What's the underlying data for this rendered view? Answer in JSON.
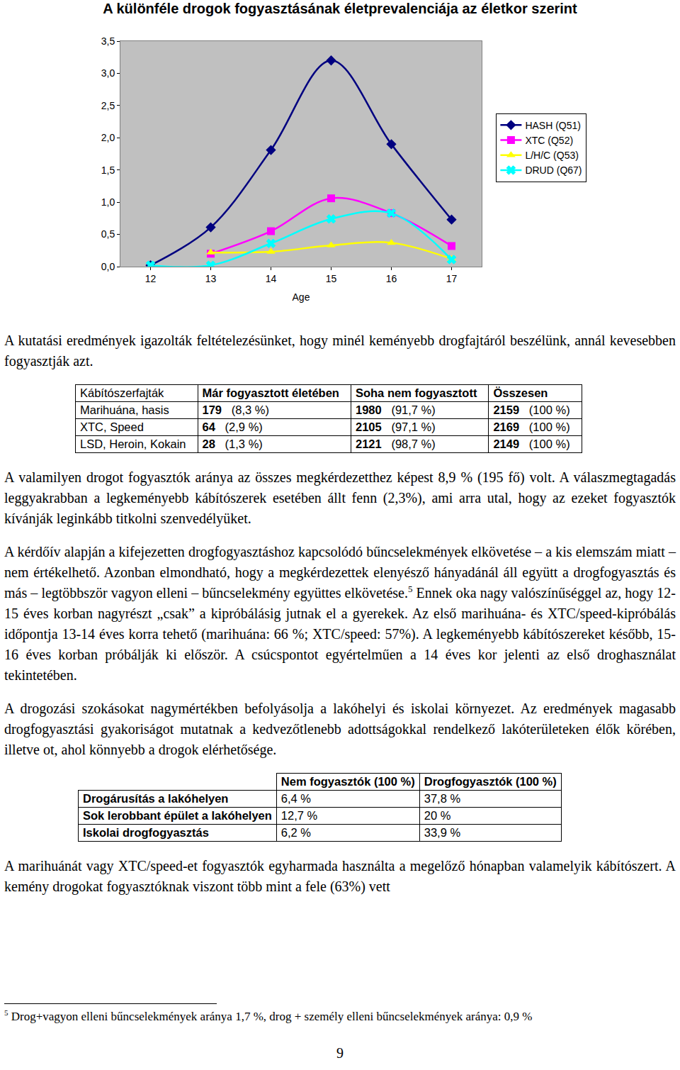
{
  "chart_data": {
    "type": "line",
    "title": "A különféle drogok fogyasztásának életprevalenciája az életkor szerint",
    "x_label": "Age",
    "x": [
      12,
      13,
      14,
      15,
      16,
      17
    ],
    "xlim": [
      11.5,
      17.5
    ],
    "xticks": [
      12,
      13,
      14,
      15,
      16,
      17
    ],
    "ylim": [
      0,
      3.5
    ],
    "yticks": [
      {
        "value": 0,
        "label": "0,0"
      },
      {
        "value": 0.5,
        "label": "0,5"
      },
      {
        "value": 1,
        "label": "1,0"
      },
      {
        "value": 1.5,
        "label": "1,5"
      },
      {
        "value": 2,
        "label": "2,0"
      },
      {
        "value": 2.5,
        "label": "2,5"
      },
      {
        "value": 3,
        "label": "3,0"
      },
      {
        "value": 3.5,
        "label": "3,5"
      }
    ],
    "grid": false,
    "legend": "right",
    "line_style": "smooth",
    "series": [
      {
        "name": "HASH (Q51)",
        "color": "#000080",
        "marker": "diamond",
        "values": [
          0.02,
          0.61,
          1.81,
          3.2,
          1.9,
          0.73
        ]
      },
      {
        "name": "XTC (Q52)",
        "color": "#ff00ff",
        "marker": "square",
        "values": [
          null,
          0.2,
          0.55,
          1.06,
          0.83,
          0.32
        ]
      },
      {
        "name": "L/H/C (Q53)",
        "color": "#ffff00",
        "marker": "triangle-up",
        "values": [
          null,
          0.22,
          0.23,
          0.33,
          0.37,
          0.12
        ]
      },
      {
        "name": "DRUD (Q67)",
        "color": "#00ffff",
        "marker": "x",
        "values": [
          0.02,
          0.02,
          0.36,
          0.74,
          0.83,
          0.11
        ]
      }
    ]
  },
  "blocks": [
    {
      "kind": "p",
      "parts": [
        "A kutatási eredmények igazolták feltételezésünket, hogy minél keményebb drogfajtáról beszélünk, annál kevesebben fogyasztják azt."
      ]
    },
    {
      "kind": "table",
      "style": "t1",
      "header": [
        "Kábítószerfajták",
        "Már fogyasztott életében",
        "Soha nem fogyasztott",
        "Összesen"
      ],
      "rows": [
        [
          "Marihuána, hasis",
          [
            "179",
            "(8,3 %)"
          ],
          [
            "1980",
            "(91,7 %)"
          ],
          [
            "2159",
            "(100 %)"
          ]
        ],
        [
          "XTC, Speed",
          [
            "64",
            "(2,9 %)"
          ],
          [
            "2105",
            "(97,1 %)"
          ],
          [
            "2169",
            "(100 %)"
          ]
        ],
        [
          "LSD, Heroin, Kokain",
          [
            "28",
            "(1,3 %)"
          ],
          [
            "2121",
            "(98,7 %)"
          ],
          [
            "2149",
            "(100 %)"
          ]
        ]
      ]
    },
    {
      "kind": "p",
      "parts": [
        "A valamilyen drogot fogyasztók aránya az összes megkérdezetthez képest 8,9 % (195 fő) volt. A válaszmegtagadás leggyakrabban a legkeményebb kábítószerek esetében állt fenn (2,3%), ami arra utal, hogy az ezeket fogyasztók kívánják leginkább titkolni szenvedélyüket."
      ]
    },
    {
      "kind": "p",
      "parts": [
        "A kérdőív alapján a kifejezetten drogfogyasztáshoz kapcsolódó bűncselekmények elkövetése – a kis elemszám miatt – nem értékelhető. Azonban elmondható, hogy a megkérdezettek elenyésző hányadánál áll együtt a drogfogyasztás és más – legtöbbször vagyon elleni – bűncselekmény együttes elkövetése.",
        {
          "sup": "5"
        },
        " Ennek oka nagy valószínűséggel az, hogy 12-15 éves korban nagyrészt „csak” a kipróbálásig jutnak el a gyerekek. Az első marihuána- és XTC/speed-kipróbálás időpontja 13-14 éves korra tehető (marihuána: 66 %; XTC/speed: 57%). A legkeményebb kábítószereket később, 15-16 éves korban próbálják ki először. A csúcspontot egyértelműen a 14 éves kor jelenti az első droghasználat tekintetében."
      ]
    },
    {
      "kind": "p",
      "parts": [
        "A drogozási szokásokat nagymértékben befolyásolja a lakóhelyi és iskolai környezet. Az eredmények magasabb drogfogyasztási gyakoriságot mutatnak a kedvezőtlenebb adottságokkal rendelkező lakóterületeken élők körében, illetve ot, ahol könnyebb a drogok elérhetősége."
      ]
    },
    {
      "kind": "table",
      "style": "t2",
      "header": [
        null,
        "Nem fogyasztók (100 %)",
        "Drogfogyasztók (100 %)"
      ],
      "rows": [
        [
          "Drogárusítás a lakóhelyen",
          "6,4 %",
          "37,8 %"
        ],
        [
          "Sok lerobbant épület a lakóhelyen",
          "12,7 %",
          "20 %"
        ],
        [
          "Iskolai drogfogyasztás",
          "6,2 %",
          "33,9 %"
        ]
      ]
    },
    {
      "kind": "p",
      "parts": [
        "A marihuánát vagy XTC/speed-et fogyasztók egyharmada használta a megelőző hónapban valamelyik kábítószert. A kemény drogokat fogyasztóknak viszont több mint a fele (63%) vett"
      ]
    }
  ],
  "footnote": {
    "mark": "5",
    "text": " Drog+vagyon elleni bűncselekmények aránya 1,7 %, drog + személy elleni bűncselekmények aránya: 0,9 %"
  },
  "page_number": "9"
}
